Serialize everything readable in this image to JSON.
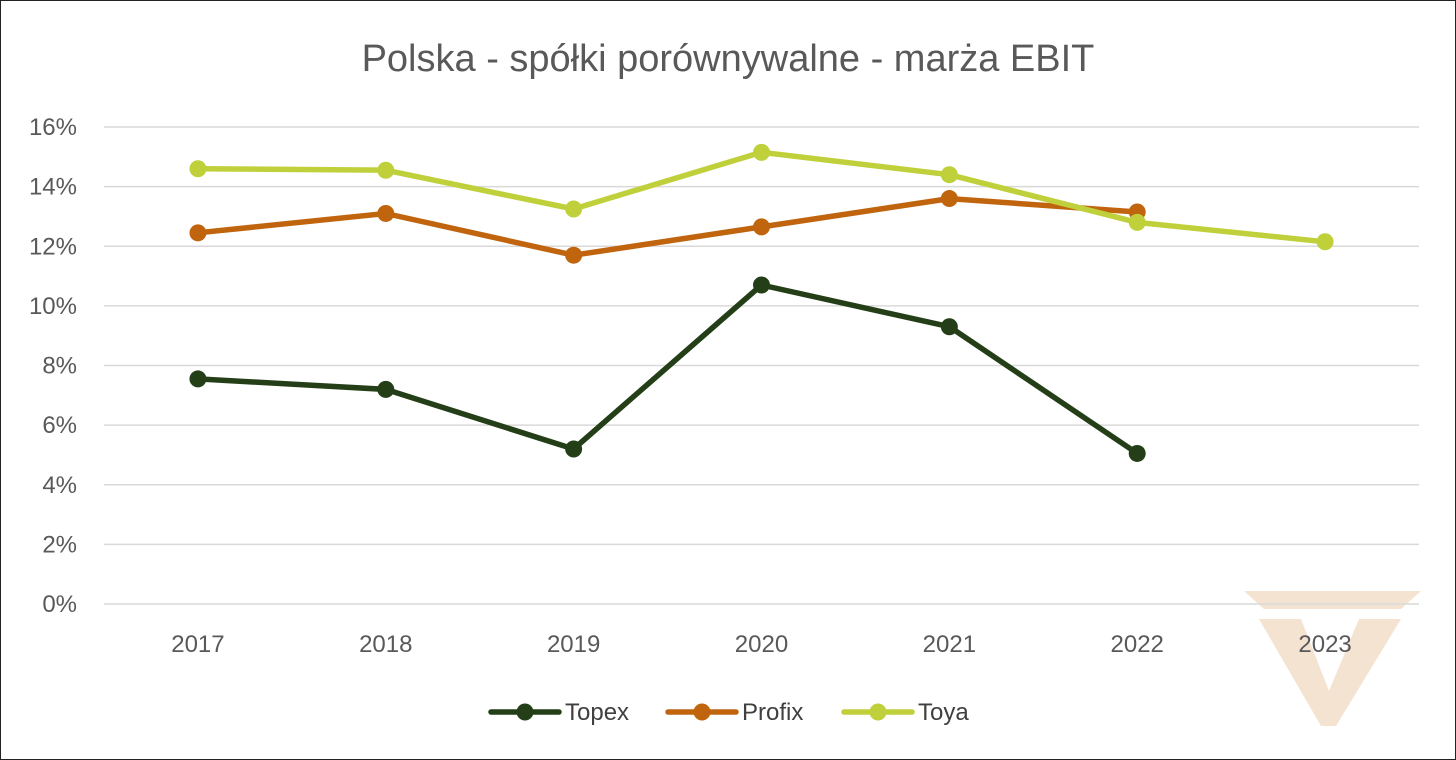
{
  "chart_data": {
    "type": "line",
    "title": "Polska - spółki porównywalne - marża EBIT",
    "xlabel": "",
    "ylabel": "",
    "categories": [
      "2017",
      "2018",
      "2019",
      "2020",
      "2021",
      "2022",
      "2023"
    ],
    "ylim": [
      0,
      16
    ],
    "y_ticks": [
      0,
      2,
      4,
      6,
      8,
      10,
      12,
      14,
      16
    ],
    "y_tick_labels": [
      "0%",
      "2%",
      "4%",
      "6%",
      "8%",
      "10%",
      "12%",
      "14%",
      "16%"
    ],
    "grid": true,
    "legend_position": "bottom",
    "series": [
      {
        "name": "Topex",
        "color": "#243f17",
        "values": [
          7.55,
          7.2,
          5.2,
          10.7,
          9.3,
          5.05,
          null
        ]
      },
      {
        "name": "Profix",
        "color": "#c0650e",
        "values": [
          12.45,
          13.1,
          11.7,
          12.65,
          13.6,
          13.15,
          null
        ]
      },
      {
        "name": "Toya",
        "color": "#bfd03b",
        "values": [
          14.6,
          14.55,
          13.25,
          15.15,
          14.4,
          12.8,
          12.15
        ]
      }
    ]
  },
  "watermark": {
    "color": "#f3e3d0",
    "icon": "logo-watermark"
  }
}
